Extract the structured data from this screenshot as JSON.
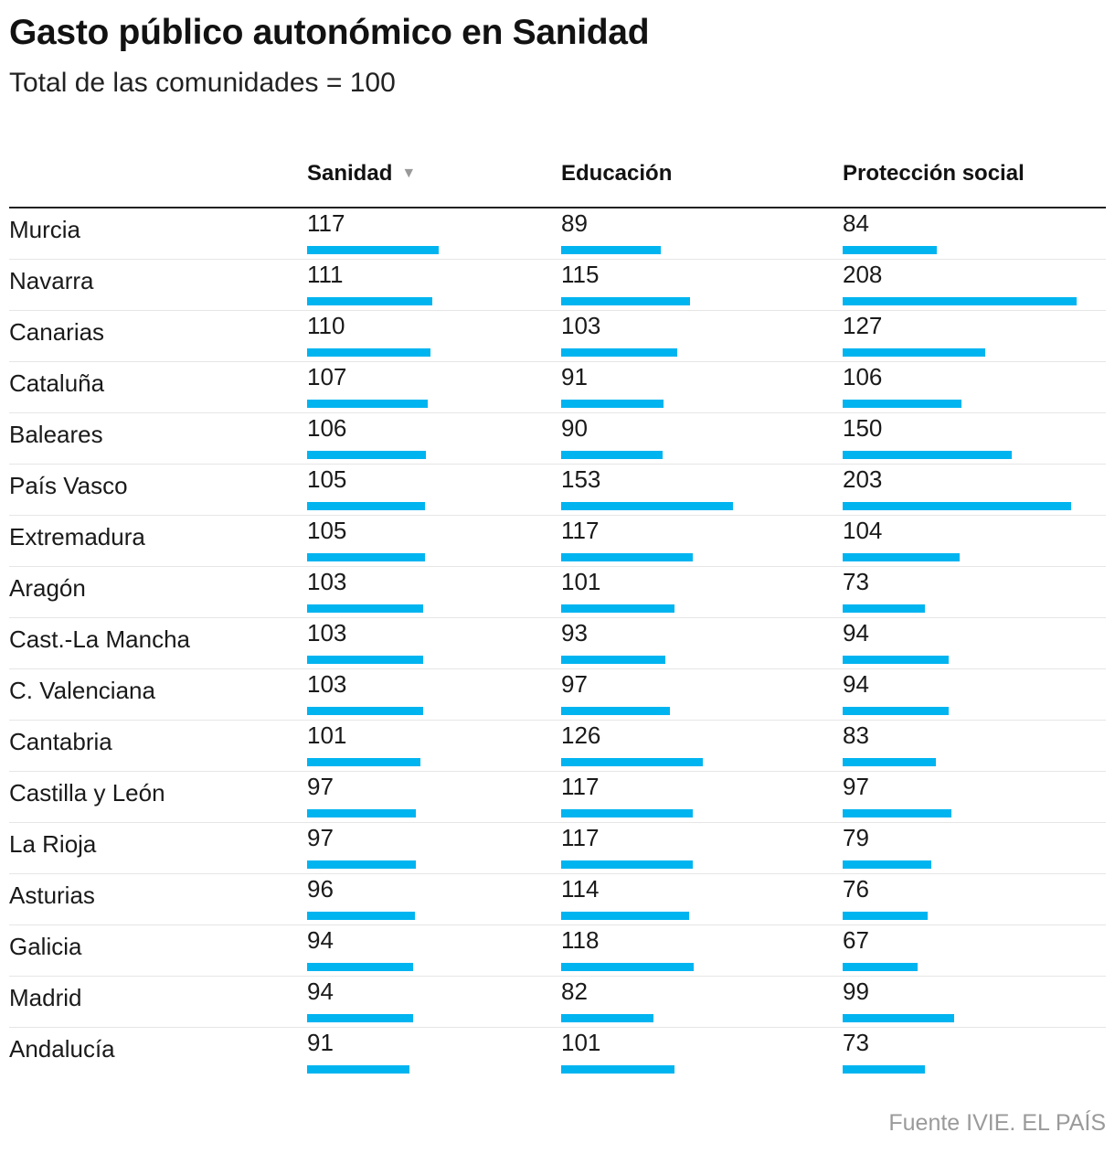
{
  "title": "Gasto público autonómico en Sanidad",
  "subtitle": "Total de las comunidades = 100",
  "source": "Fuente IVIE. EL PAÍS",
  "colors": {
    "bar": "#00b4f0",
    "sort_icon": "#999999"
  },
  "header": {
    "sort_icon": "triangle-down-icon"
  },
  "chart_data": {
    "type": "bar",
    "title": "Gasto público autonómico en Sanidad",
    "subtitle": "Total de las comunidades = 100",
    "sorted_by": "Sanidad",
    "sort_direction": "descending",
    "categories": [
      "Murcia",
      "Navarra",
      "Canarias",
      "Cataluña",
      "Baleares",
      "País Vasco",
      "Extremadura",
      "Aragón",
      "Cast.-La Mancha",
      "C. Valenciana",
      "Cantabria",
      "Castilla y León",
      "La Rioja",
      "Asturias",
      "Galicia",
      "Madrid",
      "Andalucía"
    ],
    "series": [
      {
        "name": "Sanidad",
        "values": [
          117,
          111,
          110,
          107,
          106,
          105,
          105,
          103,
          103,
          103,
          101,
          97,
          97,
          96,
          94,
          94,
          91
        ]
      },
      {
        "name": "Educación",
        "values": [
          89,
          115,
          103,
          91,
          90,
          153,
          117,
          101,
          93,
          97,
          126,
          117,
          117,
          114,
          118,
          82,
          101
        ]
      },
      {
        "name": "Protección social",
        "values": [
          84,
          208,
          127,
          106,
          150,
          203,
          104,
          73,
          94,
          94,
          83,
          97,
          79,
          76,
          67,
          99,
          73
        ]
      }
    ]
  }
}
